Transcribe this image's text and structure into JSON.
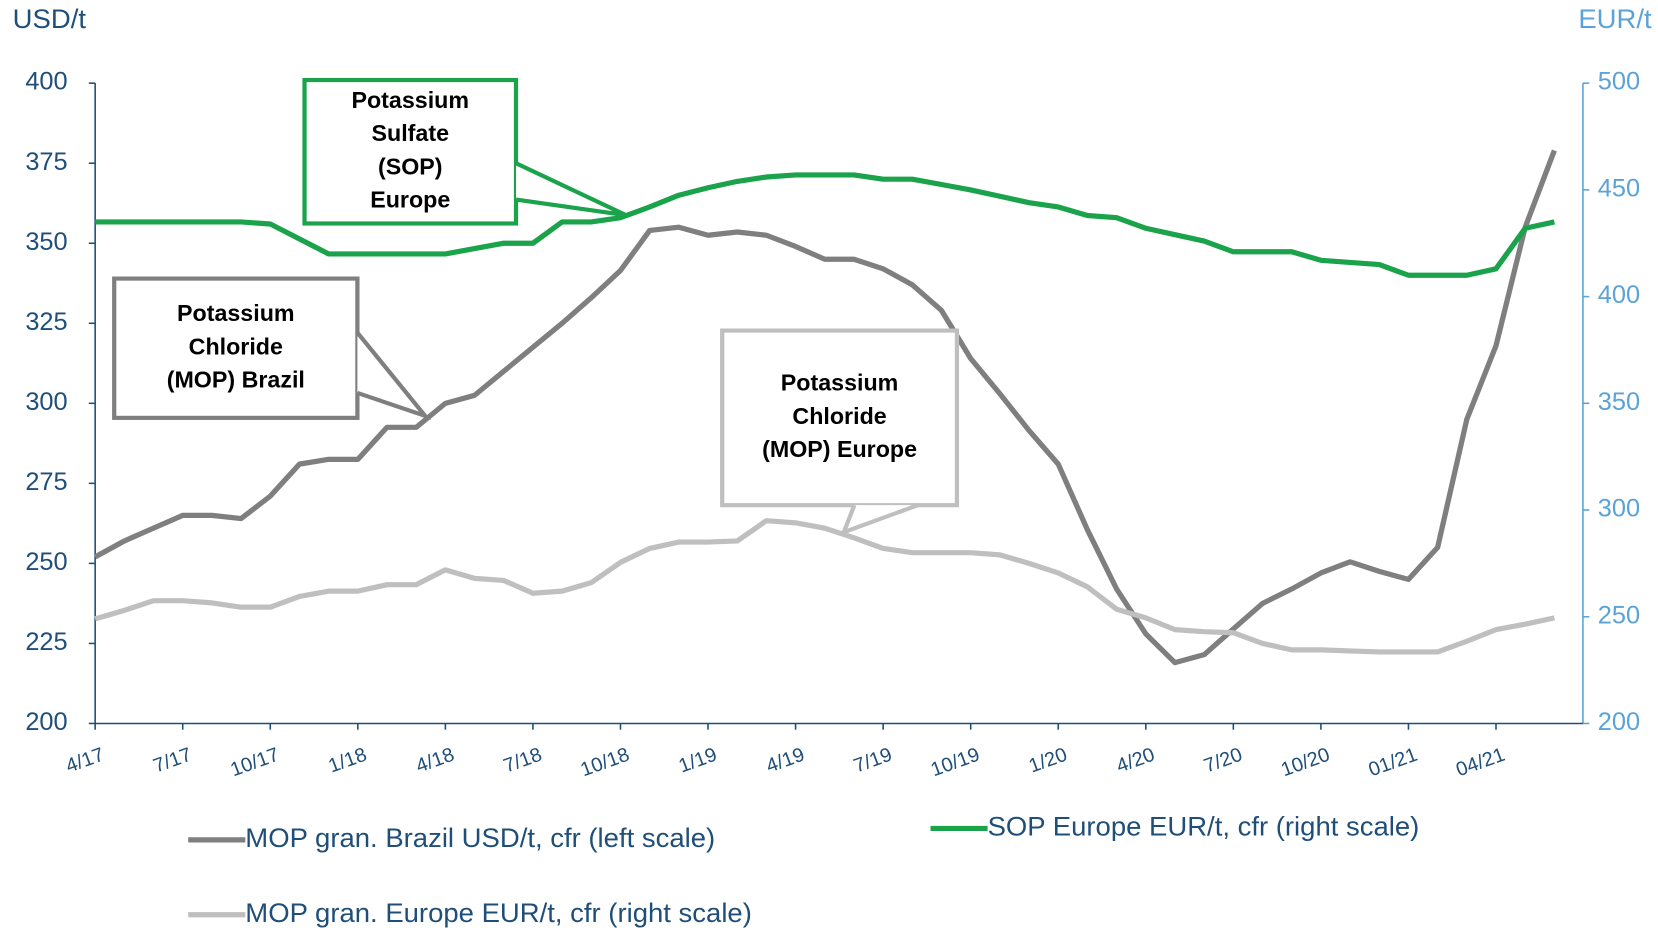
{
  "chart_data": {
    "type": "line",
    "y_axis_label": "USD/t",
    "y2_axis_label": "EUR/t",
    "categories": [
      "4/17",
      null,
      null,
      "7/17",
      null,
      null,
      "10/17",
      null,
      null,
      "1/18",
      null,
      null,
      "4/18",
      null,
      null,
      "7/18",
      null,
      null,
      "10/18",
      null,
      null,
      "1/19",
      null,
      null,
      "4/19",
      null,
      null,
      "7/19",
      null,
      null,
      "10/19",
      null,
      null,
      "1/20",
      null,
      null,
      "4/20",
      null,
      null,
      "7/20",
      null,
      null,
      "10/20",
      null,
      null,
      "01/21",
      null,
      null,
      "04/21",
      null,
      null
    ],
    "ylim": [
      200,
      400
    ],
    "yticks": [
      200,
      225,
      250,
      275,
      300,
      325,
      350,
      375,
      400
    ],
    "y2lim": [
      200,
      500
    ],
    "y2ticks": [
      200,
      250,
      300,
      350,
      400,
      450,
      500
    ],
    "series": [
      {
        "name": "MOP gran. Brazil USD/t, cfr (left scale)",
        "color": "#7f7f7f",
        "axis": "y",
        "values": [
          252,
          257,
          261,
          265,
          265,
          264,
          271,
          281,
          282.5,
          282.5,
          292.5,
          292.5,
          300,
          302.5,
          310,
          317.5,
          325,
          333,
          341.5,
          354,
          355,
          352.5,
          353.5,
          352.5,
          349,
          345,
          345,
          342,
          337,
          329,
          314,
          303,
          291.5,
          281,
          260.5,
          242,
          228,
          219,
          221.5,
          229.5,
          237.5,
          242,
          247,
          250.5,
          247.5,
          245,
          255,
          295,
          318,
          355,
          379
        ]
      },
      {
        "name": "SOP Europe EUR/t, cfr (right scale)",
        "color": "#1aa34a",
        "axis": "y2",
        "values": [
          435,
          435,
          435,
          435,
          435,
          435,
          434,
          427,
          420,
          420,
          420,
          420,
          420,
          422.5,
          425,
          425,
          435,
          435,
          437,
          442,
          447.5,
          451,
          454,
          456,
          457,
          457,
          457,
          455,
          455,
          452.5,
          450,
          447,
          444,
          442,
          438,
          437,
          432,
          429,
          426,
          421,
          421,
          421,
          417,
          416,
          415,
          410,
          410,
          410,
          413,
          432,
          435
        ]
      },
      {
        "name": "MOP gran. Europe EUR/t, cfr (right scale)",
        "color": "#bfbfbf",
        "axis": "y2",
        "values": [
          249,
          253,
          257.5,
          257.5,
          256.5,
          254.5,
          254.5,
          259.5,
          262,
          262,
          265,
          265,
          272,
          268,
          267,
          261,
          262,
          266,
          275.5,
          282,
          285,
          285,
          285.5,
          295,
          294,
          291.5,
          287,
          282,
          280,
          280,
          280,
          279,
          275,
          270.5,
          264,
          253.5,
          249.5,
          244,
          243,
          242.5,
          237.5,
          234.5,
          234.5,
          234,
          233.5,
          233.5,
          233.5,
          238.5,
          244,
          246.5,
          249.5
        ]
      }
    ],
    "annotations": [
      {
        "lines": [
          "Potassium",
          "Sulfate",
          "(SOP)",
          "Europe"
        ],
        "color": "#1aa34a"
      },
      {
        "lines": [
          "Potassium",
          "Chloride",
          "(MOP) Brazil"
        ],
        "color": "#7f7f7f"
      },
      {
        "lines": [
          "Potassium",
          "Chloride",
          "(MOP) Europe"
        ],
        "color": "#bfbfbf"
      }
    ]
  }
}
